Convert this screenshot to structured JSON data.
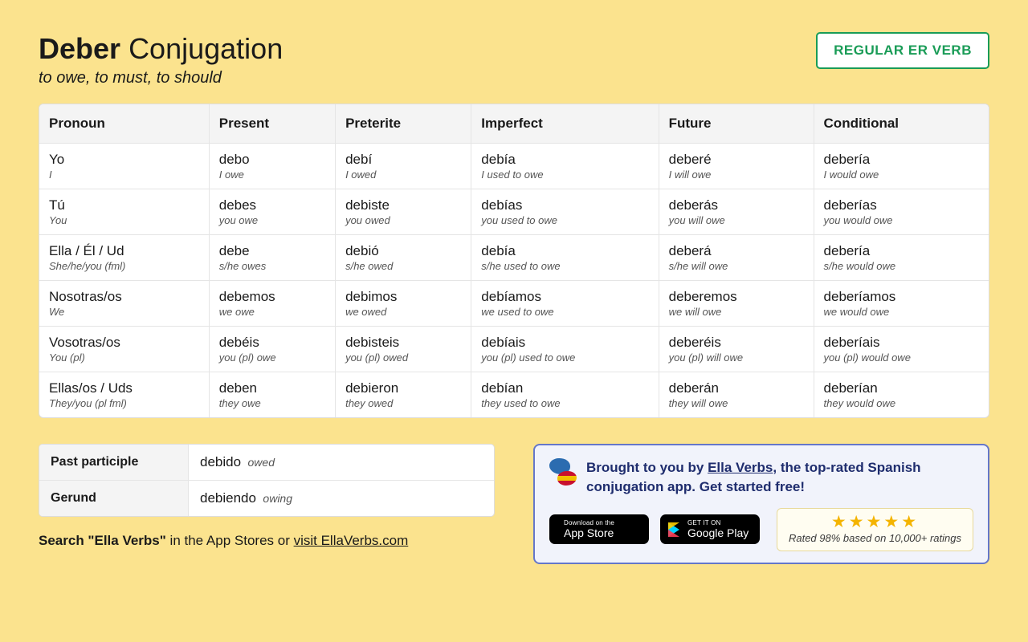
{
  "colors": {
    "page_bg": "#fbe38e",
    "table_bg": "#ffffff",
    "header_bg": "#f4f4f4",
    "border": "#e5e5e5",
    "accent_green": "#1a9c57",
    "promo_bg": "#f1f3fb",
    "promo_border": "#6577c9",
    "promo_text": "#1f2d6e",
    "star": "#f4b400",
    "rating_bg": "#fffdf1",
    "rating_border": "#e7d99a"
  },
  "header": {
    "verb": "Deber",
    "word_conjugation": "Conjugation",
    "subtitle": "to owe, to must, to should",
    "verb_type_label": "REGULAR ER VERB"
  },
  "table": {
    "columns": [
      "Pronoun",
      "Present",
      "Preterite",
      "Imperfect",
      "Future",
      "Conditional"
    ],
    "rows": [
      {
        "pronoun": {
          "main": "Yo",
          "sub": "I"
        },
        "cells": [
          {
            "main": "debo",
            "sub": "I owe"
          },
          {
            "main": "debí",
            "sub": "I owed"
          },
          {
            "main": "debía",
            "sub": "I used to owe"
          },
          {
            "main": "deberé",
            "sub": "I will owe"
          },
          {
            "main": "debería",
            "sub": "I would owe"
          }
        ]
      },
      {
        "pronoun": {
          "main": "Tú",
          "sub": "You"
        },
        "cells": [
          {
            "main": "debes",
            "sub": "you owe"
          },
          {
            "main": "debiste",
            "sub": "you owed"
          },
          {
            "main": "debías",
            "sub": "you used to owe"
          },
          {
            "main": "deberás",
            "sub": "you will owe"
          },
          {
            "main": "deberías",
            "sub": "you would owe"
          }
        ]
      },
      {
        "pronoun": {
          "main": "Ella / Él / Ud",
          "sub": "She/he/you (fml)"
        },
        "cells": [
          {
            "main": "debe",
            "sub": "s/he owes"
          },
          {
            "main": "debió",
            "sub": "s/he owed"
          },
          {
            "main": "debía",
            "sub": "s/he used to owe"
          },
          {
            "main": "deberá",
            "sub": "s/he will owe"
          },
          {
            "main": "debería",
            "sub": "s/he would owe"
          }
        ]
      },
      {
        "pronoun": {
          "main": "Nosotras/os",
          "sub": "We"
        },
        "cells": [
          {
            "main": "debemos",
            "sub": "we owe"
          },
          {
            "main": "debimos",
            "sub": "we owed"
          },
          {
            "main": "debíamos",
            "sub": "we used to owe"
          },
          {
            "main": "deberemos",
            "sub": "we will owe"
          },
          {
            "main": "deberíamos",
            "sub": "we would owe"
          }
        ]
      },
      {
        "pronoun": {
          "main": "Vosotras/os",
          "sub": "You (pl)"
        },
        "cells": [
          {
            "main": "debéis",
            "sub": "you (pl) owe"
          },
          {
            "main": "debisteis",
            "sub": "you (pl) owed"
          },
          {
            "main": "debíais",
            "sub": "you (pl) used to owe"
          },
          {
            "main": "deberéis",
            "sub": "you (pl) will owe"
          },
          {
            "main": "deberíais",
            "sub": "you (pl) would owe"
          }
        ]
      },
      {
        "pronoun": {
          "main": "Ellas/os / Uds",
          "sub": "They/you (pl fml)"
        },
        "cells": [
          {
            "main": "deben",
            "sub": "they owe"
          },
          {
            "main": "debieron",
            "sub": "they owed"
          },
          {
            "main": "debían",
            "sub": "they used to owe"
          },
          {
            "main": "deberán",
            "sub": "they will owe"
          },
          {
            "main": "deberían",
            "sub": "they would owe"
          }
        ]
      }
    ]
  },
  "aux": {
    "rows": [
      {
        "label": "Past participle",
        "form": "debido",
        "tr": "owed"
      },
      {
        "label": "Gerund",
        "form": "debiendo",
        "tr": "owing"
      }
    ]
  },
  "search_line": {
    "bold": "Search \"Ella Verbs\"",
    "plain": " in the App Stores or ",
    "link": "visit EllaVerbs.com"
  },
  "promo": {
    "prefix": "Brought to you by ",
    "link": "Ella Verbs",
    "suffix": ", the top-rated Spanish conjugation app. Get started free!",
    "appstore": {
      "small": "Download on the",
      "big": "App Store"
    },
    "gplay": {
      "small": "GET IT ON",
      "big": "Google Play"
    },
    "rating_text": "Rated 98% based on 10,000+ ratings",
    "stars_count": 5
  }
}
